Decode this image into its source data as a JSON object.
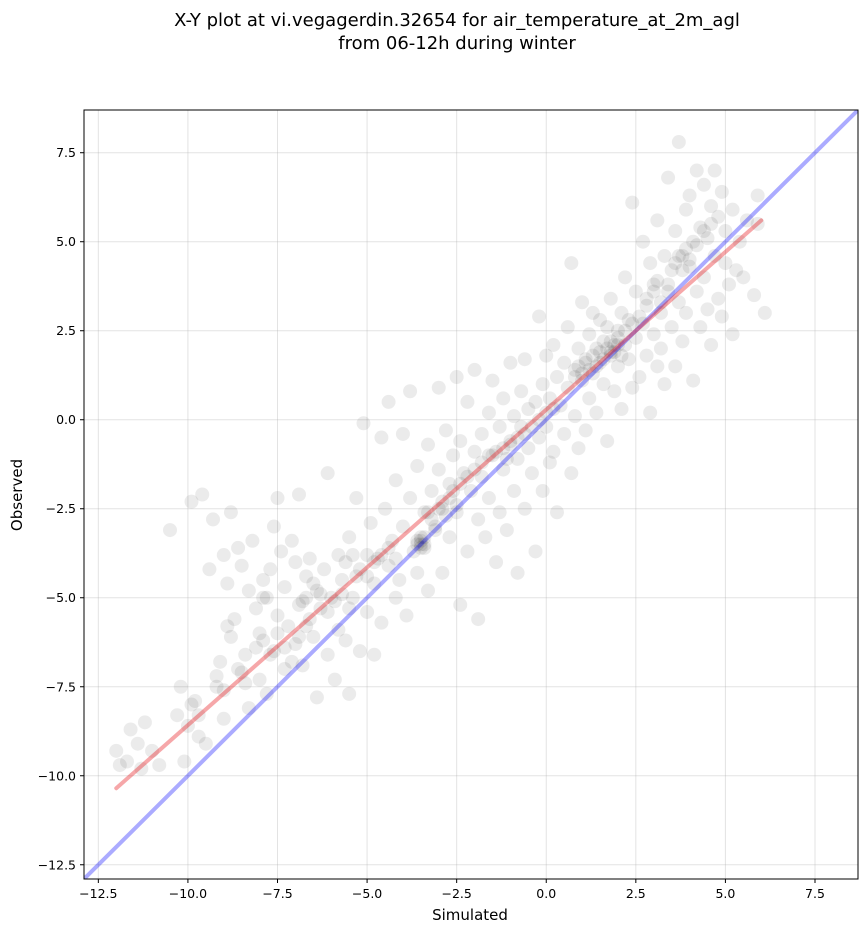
{
  "chart_data": {
    "type": "scatter",
    "title_lines": [
      "X-Y plot at vi.vegagerdin.32654 for air_temperature_at_2m_agl",
      "from 06-12h during winter"
    ],
    "xlabel": "Simulated",
    "ylabel": "Observed",
    "xlim": [
      -12.9,
      8.7
    ],
    "ylim": [
      -12.9,
      8.7
    ],
    "xticks": [
      -12.5,
      -10.0,
      -7.5,
      -5.0,
      -2.5,
      0.0,
      2.5,
      5.0,
      7.5
    ],
    "yticks": [
      -12.5,
      -10.0,
      -7.5,
      -5.0,
      -2.5,
      0.0,
      2.5,
      5.0,
      7.5
    ],
    "xtick_labels": [
      "−12.5",
      "−10.0",
      "−7.5",
      "−5.0",
      "−2.5",
      "0.0",
      "2.5",
      "5.0",
      "7.5"
    ],
    "ytick_labels": [
      "−12.5",
      "−10.0",
      "−7.5",
      "−5.0",
      "−2.5",
      "0.0",
      "2.5",
      "5.0",
      "7.5"
    ],
    "grid": true,
    "point_color": "#000000",
    "point_opacity": 0.08,
    "points": [
      [
        -12.0,
        -9.3
      ],
      [
        -11.9,
        -9.7
      ],
      [
        -11.7,
        -9.6
      ],
      [
        -11.6,
        -8.7
      ],
      [
        -11.4,
        -9.1
      ],
      [
        -11.3,
        -9.8
      ],
      [
        -11.2,
        -8.5
      ],
      [
        -11.0,
        -9.3
      ],
      [
        -10.8,
        -9.7
      ],
      [
        -10.5,
        -3.1
      ],
      [
        -10.2,
        -7.5
      ],
      [
        -10.1,
        -9.6
      ],
      [
        -10.0,
        -8.6
      ],
      [
        -9.9,
        -8.0
      ],
      [
        -9.9,
        -2.3
      ],
      [
        -9.8,
        -7.9
      ],
      [
        -9.7,
        -8.9
      ],
      [
        -9.6,
        -2.1
      ],
      [
        -9.5,
        -9.1
      ],
      [
        -9.4,
        -4.2
      ],
      [
        -9.3,
        -2.8
      ],
      [
        -9.2,
        -7.5
      ],
      [
        -9.1,
        -6.8
      ],
      [
        -9.0,
        -3.8
      ],
      [
        -9.0,
        -8.4
      ],
      [
        -8.9,
        -4.6
      ],
      [
        -8.8,
        -2.6
      ],
      [
        -8.8,
        -6.1
      ],
      [
        -8.7,
        -5.6
      ],
      [
        -8.6,
        -3.6
      ],
      [
        -8.5,
        -7.1
      ],
      [
        -8.5,
        -4.1
      ],
      [
        -8.4,
        -6.6
      ],
      [
        -8.3,
        -4.8
      ],
      [
        -8.3,
        -8.1
      ],
      [
        -8.2,
        -3.4
      ],
      [
        -8.1,
        -5.3
      ],
      [
        -8.0,
        -6.0
      ],
      [
        -8.0,
        -7.3
      ],
      [
        -7.9,
        -4.5
      ],
      [
        -7.8,
        -5.0
      ],
      [
        -7.8,
        -7.7
      ],
      [
        -7.7,
        -4.2
      ],
      [
        -7.6,
        -3.0
      ],
      [
        -7.6,
        -6.5
      ],
      [
        -7.5,
        -2.2
      ],
      [
        -7.5,
        -5.5
      ],
      [
        -7.4,
        -3.7
      ],
      [
        -7.3,
        -4.7
      ],
      [
        -7.3,
        -7.0
      ],
      [
        -7.2,
        -5.8
      ],
      [
        -7.1,
        -3.4
      ],
      [
        -7.0,
        -6.3
      ],
      [
        -7.0,
        -4.0
      ],
      [
        -6.9,
        -2.1
      ],
      [
        -6.8,
        -5.1
      ],
      [
        -6.8,
        -6.9
      ],
      [
        -6.7,
        -4.4
      ],
      [
        -6.6,
        -5.6
      ],
      [
        -6.6,
        -3.9
      ],
      [
        -6.5,
        -6.1
      ],
      [
        -6.4,
        -4.8
      ],
      [
        -6.4,
        -7.8
      ],
      [
        -6.3,
        -5.3
      ],
      [
        -6.2,
        -4.2
      ],
      [
        -6.1,
        -6.6
      ],
      [
        -6.1,
        -1.5
      ],
      [
        -6.0,
        -5.0
      ],
      [
        -5.9,
        -7.3
      ],
      [
        -5.8,
        -3.8
      ],
      [
        -5.8,
        -5.9
      ],
      [
        -5.7,
        -4.5
      ],
      [
        -5.6,
        -6.2
      ],
      [
        -5.5,
        -3.3
      ],
      [
        -5.5,
        -7.7
      ],
      [
        -5.4,
        -5.0
      ],
      [
        -5.3,
        -2.2
      ],
      [
        -5.3,
        -4.4
      ],
      [
        -5.2,
        -6.5
      ],
      [
        -5.1,
        -0.1
      ],
      [
        -5.0,
        -3.8
      ],
      [
        -5.0,
        -5.4
      ],
      [
        -4.9,
        -2.9
      ],
      [
        -4.8,
        -4.6
      ],
      [
        -4.8,
        -6.6
      ],
      [
        -4.7,
        -3.9
      ],
      [
        -4.6,
        -0.5
      ],
      [
        -4.6,
        -5.7
      ],
      [
        -4.5,
        -2.5
      ],
      [
        -4.4,
        -4.1
      ],
      [
        -4.4,
        0.5
      ],
      [
        -4.3,
        -3.4
      ],
      [
        -4.2,
        -5.0
      ],
      [
        -4.2,
        -1.7
      ],
      [
        -4.1,
        -4.5
      ],
      [
        -4.0,
        -0.4
      ],
      [
        -4.0,
        -3.0
      ],
      [
        -3.9,
        -5.5
      ],
      [
        -3.8,
        -2.2
      ],
      [
        -3.8,
        0.8
      ],
      [
        -3.7,
        -3.7
      ],
      [
        -3.6,
        -1.3
      ],
      [
        -3.6,
        -4.3
      ],
      [
        -3.5,
        -3.5
      ],
      [
        -3.5,
        -3.4
      ],
      [
        -3.4,
        -2.6
      ],
      [
        -3.4,
        -3.6
      ],
      [
        -3.3,
        -0.7
      ],
      [
        -3.3,
        -4.8
      ],
      [
        -3.2,
        -2.0
      ],
      [
        -3.1,
        -3.1
      ],
      [
        -3.0,
        0.9
      ],
      [
        -3.0,
        -1.4
      ],
      [
        -2.9,
        -2.5
      ],
      [
        -2.9,
        -4.3
      ],
      [
        -2.8,
        -0.3
      ],
      [
        -2.7,
        -1.8
      ],
      [
        -2.7,
        -3.3
      ],
      [
        -2.6,
        -1.0
      ],
      [
        -2.5,
        1.2
      ],
      [
        -2.5,
        -2.4
      ],
      [
        -2.4,
        -0.6
      ],
      [
        -2.4,
        -5.2
      ],
      [
        -2.3,
        -1.5
      ],
      [
        -2.2,
        -3.7
      ],
      [
        -2.2,
        0.5
      ],
      [
        -2.1,
        -2.0
      ],
      [
        -2.0,
        -0.9
      ],
      [
        -2.0,
        1.4
      ],
      [
        -1.9,
        -2.8
      ],
      [
        -1.9,
        -5.6
      ],
      [
        -1.8,
        -0.4
      ],
      [
        -1.8,
        -1.6
      ],
      [
        -1.7,
        -3.3
      ],
      [
        -1.6,
        0.2
      ],
      [
        -1.6,
        -2.2
      ],
      [
        -1.5,
        1.1
      ],
      [
        -1.5,
        -1.0
      ],
      [
        -1.4,
        -4.0
      ],
      [
        -1.3,
        -0.2
      ],
      [
        -1.3,
        -2.6
      ],
      [
        -1.2,
        0.6
      ],
      [
        -1.2,
        -1.4
      ],
      [
        -1.1,
        -3.1
      ],
      [
        -1.0,
        -0.6
      ],
      [
        -1.0,
        1.6
      ],
      [
        -0.9,
        -2.0
      ],
      [
        -0.9,
        0.1
      ],
      [
        -0.8,
        -1.1
      ],
      [
        -0.8,
        -4.3
      ],
      [
        -0.7,
        0.8
      ],
      [
        -0.7,
        -0.2
      ],
      [
        -0.6,
        -2.5
      ],
      [
        -0.6,
        1.7
      ],
      [
        -0.5,
        -0.8
      ],
      [
        -0.5,
        0.3
      ],
      [
        -0.4,
        -1.5
      ],
      [
        -0.3,
        -3.7
      ],
      [
        -0.3,
        0.5
      ],
      [
        -0.2,
        -0.5
      ],
      [
        -0.2,
        2.9
      ],
      [
        -0.1,
        -2.0
      ],
      [
        -0.1,
        1.0
      ],
      [
        0.0,
        -0.2
      ],
      [
        0.0,
        1.8
      ],
      [
        0.1,
        -1.2
      ],
      [
        0.1,
        0.6
      ],
      [
        0.2,
        2.1
      ],
      [
        0.2,
        -0.9
      ],
      [
        0.3,
        1.2
      ],
      [
        0.3,
        -2.6
      ],
      [
        0.4,
        0.4
      ],
      [
        0.5,
        1.6
      ],
      [
        0.5,
        -0.4
      ],
      [
        0.6,
        2.6
      ],
      [
        0.6,
        0.9
      ],
      [
        0.7,
        -1.5
      ],
      [
        0.7,
        4.4
      ],
      [
        0.8,
        1.4
      ],
      [
        0.8,
        0.1
      ],
      [
        0.9,
        2.0
      ],
      [
        0.9,
        -0.8
      ],
      [
        1.0,
        1.1
      ],
      [
        1.0,
        3.3
      ],
      [
        1.1,
        1.7
      ],
      [
        1.1,
        -0.3
      ],
      [
        1.2,
        2.4
      ],
      [
        1.2,
        0.6
      ],
      [
        1.3,
        1.3
      ],
      [
        1.3,
        3.0
      ],
      [
        1.4,
        2.0
      ],
      [
        1.4,
        0.2
      ],
      [
        1.5,
        1.6
      ],
      [
        1.5,
        2.8
      ],
      [
        1.6,
        2.2
      ],
      [
        1.6,
        1.0
      ],
      [
        1.7,
        2.6
      ],
      [
        1.7,
        -0.6
      ],
      [
        1.8,
        1.8
      ],
      [
        1.8,
        3.4
      ],
      [
        1.9,
        2.1
      ],
      [
        1.9,
        0.8
      ],
      [
        2.0,
        2.5
      ],
      [
        2.0,
        1.5
      ],
      [
        2.1,
        3.0
      ],
      [
        2.1,
        0.3
      ],
      [
        2.2,
        2.1
      ],
      [
        2.2,
        4.0
      ],
      [
        2.3,
        1.7
      ],
      [
        2.3,
        2.8
      ],
      [
        2.4,
        6.1
      ],
      [
        2.4,
        0.9
      ],
      [
        2.5,
        2.3
      ],
      [
        2.5,
        3.6
      ],
      [
        2.6,
        1.2
      ],
      [
        2.7,
        2.7
      ],
      [
        2.7,
        5.0
      ],
      [
        2.8,
        1.8
      ],
      [
        2.8,
        3.2
      ],
      [
        2.9,
        0.2
      ],
      [
        2.9,
        4.4
      ],
      [
        3.0,
        2.4
      ],
      [
        3.0,
        3.8
      ],
      [
        3.1,
        1.5
      ],
      [
        3.1,
        5.6
      ],
      [
        3.2,
        3.0
      ],
      [
        3.2,
        2.0
      ],
      [
        3.3,
        4.6
      ],
      [
        3.3,
        1.0
      ],
      [
        3.4,
        3.6
      ],
      [
        3.4,
        6.8
      ],
      [
        3.5,
        2.6
      ],
      [
        3.5,
        4.2
      ],
      [
        3.6,
        5.3
      ],
      [
        3.6,
        1.5
      ],
      [
        3.7,
        3.3
      ],
      [
        3.7,
        7.8
      ],
      [
        3.8,
        4.6
      ],
      [
        3.8,
        2.2
      ],
      [
        3.9,
        5.9
      ],
      [
        3.9,
        3.0
      ],
      [
        4.0,
        4.3
      ],
      [
        4.0,
        6.3
      ],
      [
        4.1,
        1.1
      ],
      [
        4.1,
        5.0
      ],
      [
        4.2,
        3.6
      ],
      [
        4.2,
        7.0
      ],
      [
        4.3,
        2.6
      ],
      [
        4.3,
        5.4
      ],
      [
        4.4,
        4.0
      ],
      [
        4.4,
        6.6
      ],
      [
        4.5,
        3.1
      ],
      [
        4.5,
        5.1
      ],
      [
        4.6,
        2.1
      ],
      [
        4.6,
        6.0
      ],
      [
        4.7,
        4.6
      ],
      [
        4.7,
        7.0
      ],
      [
        4.8,
        3.4
      ],
      [
        4.8,
        5.7
      ],
      [
        4.9,
        2.9
      ],
      [
        4.9,
        6.4
      ],
      [
        5.0,
        4.4
      ],
      [
        5.0,
        5.3
      ],
      [
        5.1,
        3.8
      ],
      [
        5.2,
        2.4
      ],
      [
        5.2,
        5.9
      ],
      [
        5.3,
        4.2
      ],
      [
        5.4,
        5.0
      ],
      [
        5.5,
        4.0
      ],
      [
        5.6,
        5.6
      ],
      [
        5.8,
        3.5
      ],
      [
        5.9,
        6.3
      ],
      [
        5.9,
        5.5
      ],
      [
        6.1,
        3.0
      ],
      [
        -3.6,
        -3.4
      ],
      [
        -3.5,
        -3.6
      ],
      [
        -3.4,
        -3.3
      ],
      [
        -3.6,
        -3.5
      ],
      [
        -3.5,
        -3.3
      ],
      [
        -3.4,
        -3.5
      ],
      [
        1.7,
        2.0
      ],
      [
        1.8,
        2.2
      ],
      [
        1.9,
        1.9
      ],
      [
        2.0,
        2.1
      ],
      [
        2.1,
        1.8
      ],
      [
        1.6,
        1.7
      ],
      [
        1.8,
        1.9
      ],
      [
        2.0,
        2.3
      ],
      [
        0.8,
        1.2
      ],
      [
        0.9,
        1.5
      ],
      [
        1.0,
        1.3
      ],
      [
        1.1,
        1.6
      ],
      [
        1.2,
        1.4
      ],
      [
        1.3,
        1.8
      ],
      [
        1.4,
        1.5
      ],
      [
        1.5,
        1.9
      ],
      [
        -1.2,
        -0.8
      ],
      [
        -1.0,
        -0.7
      ],
      [
        -0.8,
        -0.5
      ],
      [
        -0.6,
        -0.4
      ],
      [
        -0.4,
        -0.2
      ],
      [
        -0.2,
        0.0
      ],
      [
        0.0,
        0.2
      ],
      [
        0.2,
        0.3
      ],
      [
        -2.6,
        -2.0
      ],
      [
        -2.4,
        -1.8
      ],
      [
        -2.2,
        -1.6
      ],
      [
        -2.0,
        -1.4
      ],
      [
        -1.8,
        -1.2
      ],
      [
        -1.6,
        -1.0
      ],
      [
        -1.4,
        -0.9
      ],
      [
        -1.1,
        -1.1
      ],
      [
        -5.6,
        -4.0
      ],
      [
        -5.4,
        -3.8
      ],
      [
        -5.2,
        -4.2
      ],
      [
        -5.0,
        -4.4
      ],
      [
        -4.8,
        -4.0
      ],
      [
        -4.6,
        -3.8
      ],
      [
        -4.4,
        -3.6
      ],
      [
        -4.2,
        -3.9
      ],
      [
        -6.9,
        -5.2
      ],
      [
        -6.7,
        -5.0
      ],
      [
        -6.5,
        -4.6
      ],
      [
        -6.3,
        -4.9
      ],
      [
        -6.1,
        -5.4
      ],
      [
        -5.9,
        -5.1
      ],
      [
        -5.7,
        -4.9
      ],
      [
        -5.5,
        -5.3
      ],
      [
        -8.1,
        -6.4
      ],
      [
        -7.9,
        -6.2
      ],
      [
        -7.7,
        -6.6
      ],
      [
        -7.5,
        -6.0
      ],
      [
        -7.3,
        -6.4
      ],
      [
        -7.1,
        -6.8
      ],
      [
        -6.9,
        -6.1
      ],
      [
        -6.7,
        -5.8
      ],
      [
        3.6,
        4.4
      ],
      [
        3.7,
        4.6
      ],
      [
        3.8,
        4.2
      ],
      [
        3.9,
        4.8
      ],
      [
        4.0,
        4.5
      ],
      [
        4.2,
        4.9
      ],
      [
        4.4,
        5.3
      ],
      [
        4.6,
        5.5
      ],
      [
        2.8,
        3.4
      ],
      [
        3.0,
        3.6
      ],
      [
        3.2,
        3.3
      ],
      [
        3.4,
        3.8
      ],
      [
        2.6,
        2.9
      ],
      [
        2.4,
        2.7
      ],
      [
        2.2,
        2.5
      ],
      [
        3.1,
        3.9
      ],
      [
        -3.0,
        -2.5
      ],
      [
        -2.8,
        -2.7
      ],
      [
        -3.2,
        -2.8
      ],
      [
        -2.9,
        -2.3
      ],
      [
        -3.1,
        -3.0
      ],
      [
        -2.7,
        -2.2
      ],
      [
        -3.3,
        -2.6
      ],
      [
        -2.5,
        -2.6
      ],
      [
        -9.2,
        -7.2
      ],
      [
        -9.0,
        -7.6
      ],
      [
        -8.6,
        -7.0
      ],
      [
        -8.4,
        -7.4
      ],
      [
        -10.3,
        -8.3
      ],
      [
        -9.7,
        -8.3
      ],
      [
        -8.9,
        -5.8
      ],
      [
        -7.9,
        -5.0
      ]
    ],
    "lines": [
      {
        "color": "#0000ff",
        "opacity": 0.33,
        "from": [
          -12.9,
          -12.9
        ],
        "to": [
          8.7,
          8.7
        ]
      },
      {
        "color": "#e8181e",
        "opacity": 0.38,
        "from": [
          -12.0,
          -10.35
        ],
        "to": [
          6.0,
          5.6
        ]
      }
    ]
  }
}
